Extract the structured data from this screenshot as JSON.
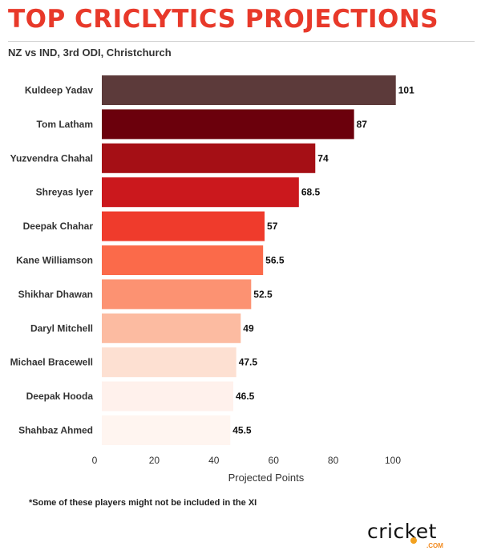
{
  "header": {
    "title": "TOP CRICLYTICS PROJECTIONS",
    "subtitle": "NZ vs IND, 3rd ODI, Christchurch"
  },
  "footnote": "*Some of these players might not be included in the XI",
  "logo": {
    "word": "cricket",
    "suffix": ".COM"
  },
  "chart_data": {
    "type": "bar",
    "orientation": "horizontal",
    "categories": [
      "Kuldeep Yadav",
      "Tom Latham",
      "Yuzvendra Chahal",
      "Shreyas Iyer",
      "Deepak Chahar",
      "Kane Williamson",
      "Shikhar Dhawan",
      "Daryl Mitchell",
      "Michael Bracewell",
      "Deepak Hooda",
      "Shahbaz Ahmed"
    ],
    "values": [
      101,
      87,
      74,
      68.5,
      57,
      56.5,
      52.5,
      49,
      47.5,
      46.5,
      45.5
    ],
    "value_labels": [
      "101",
      "87",
      "74",
      "68.5",
      "57",
      "56.5",
      "52.5",
      "49",
      "47.5",
      "46.5",
      "45.5"
    ],
    "bar_colors": [
      "#5c3a3a",
      "#6b000c",
      "#a50f15",
      "#cb181d",
      "#ef3b2c",
      "#fb6a4a",
      "#fc9272",
      "#fcbba1",
      "#fde0d2",
      "#fff1ec",
      "#fff5f0"
    ],
    "xlabel": "Projected Points",
    "ylabel": "",
    "xlim": [
      0,
      110
    ],
    "xticks": [
      0,
      20,
      40,
      60,
      80,
      100
    ],
    "grid": false,
    "legend": "none"
  }
}
